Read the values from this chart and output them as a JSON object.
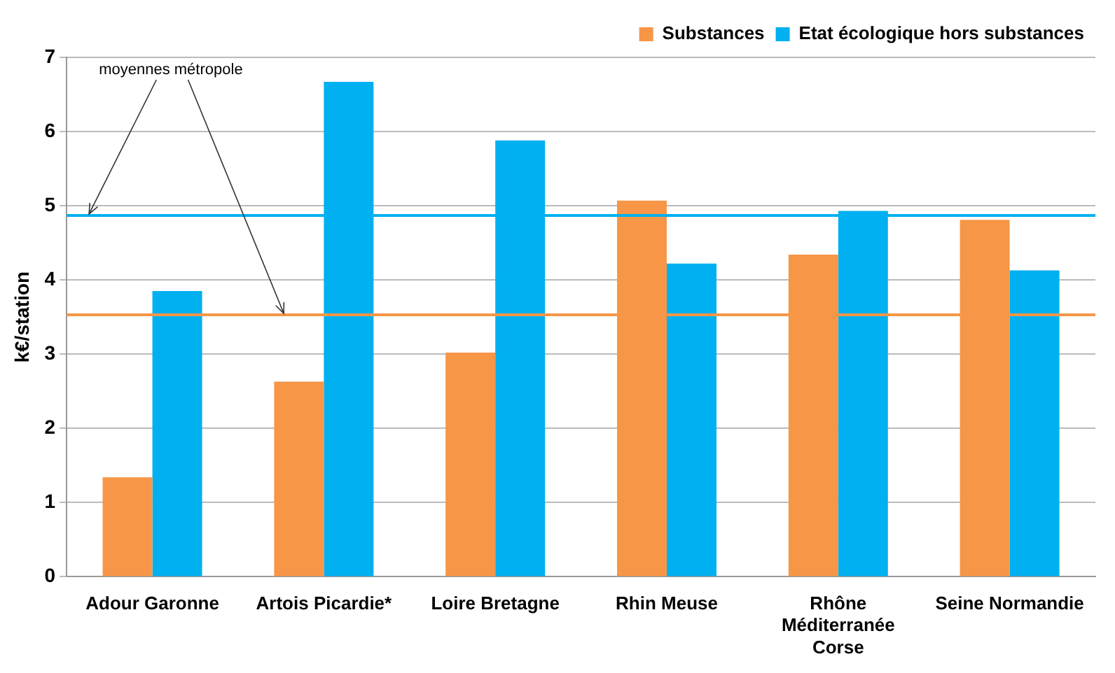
{
  "chart_data": {
    "type": "bar",
    "categories": [
      "Adour Garonne",
      "Artois Picardie*",
      "Loire Bretagne",
      "Rhin Meuse",
      "Rhône Méditerranée Corse",
      "Seine Normandie"
    ],
    "series": [
      {
        "name": "Substances",
        "color": "#f79646",
        "values": [
          1.34,
          2.63,
          3.02,
          5.07,
          4.34,
          4.81
        ]
      },
      {
        "name": "Etat écologique hors substances",
        "color": "#00b0f0",
        "values": [
          3.85,
          6.67,
          5.88,
          4.22,
          4.93,
          4.13
        ]
      }
    ],
    "ylabel": "k€/station",
    "ylim": [
      0,
      7
    ],
    "yticks": [
      0,
      1,
      2,
      3,
      4,
      5,
      6,
      7
    ],
    "grid": "y",
    "legend": "top right",
    "ref_lines": [
      {
        "axis": "y",
        "value": 4.87,
        "color": "#00b0f0",
        "label": "moyennes métropole"
      },
      {
        "axis": "y",
        "value": 3.53,
        "color": "#f79646"
      }
    ]
  }
}
